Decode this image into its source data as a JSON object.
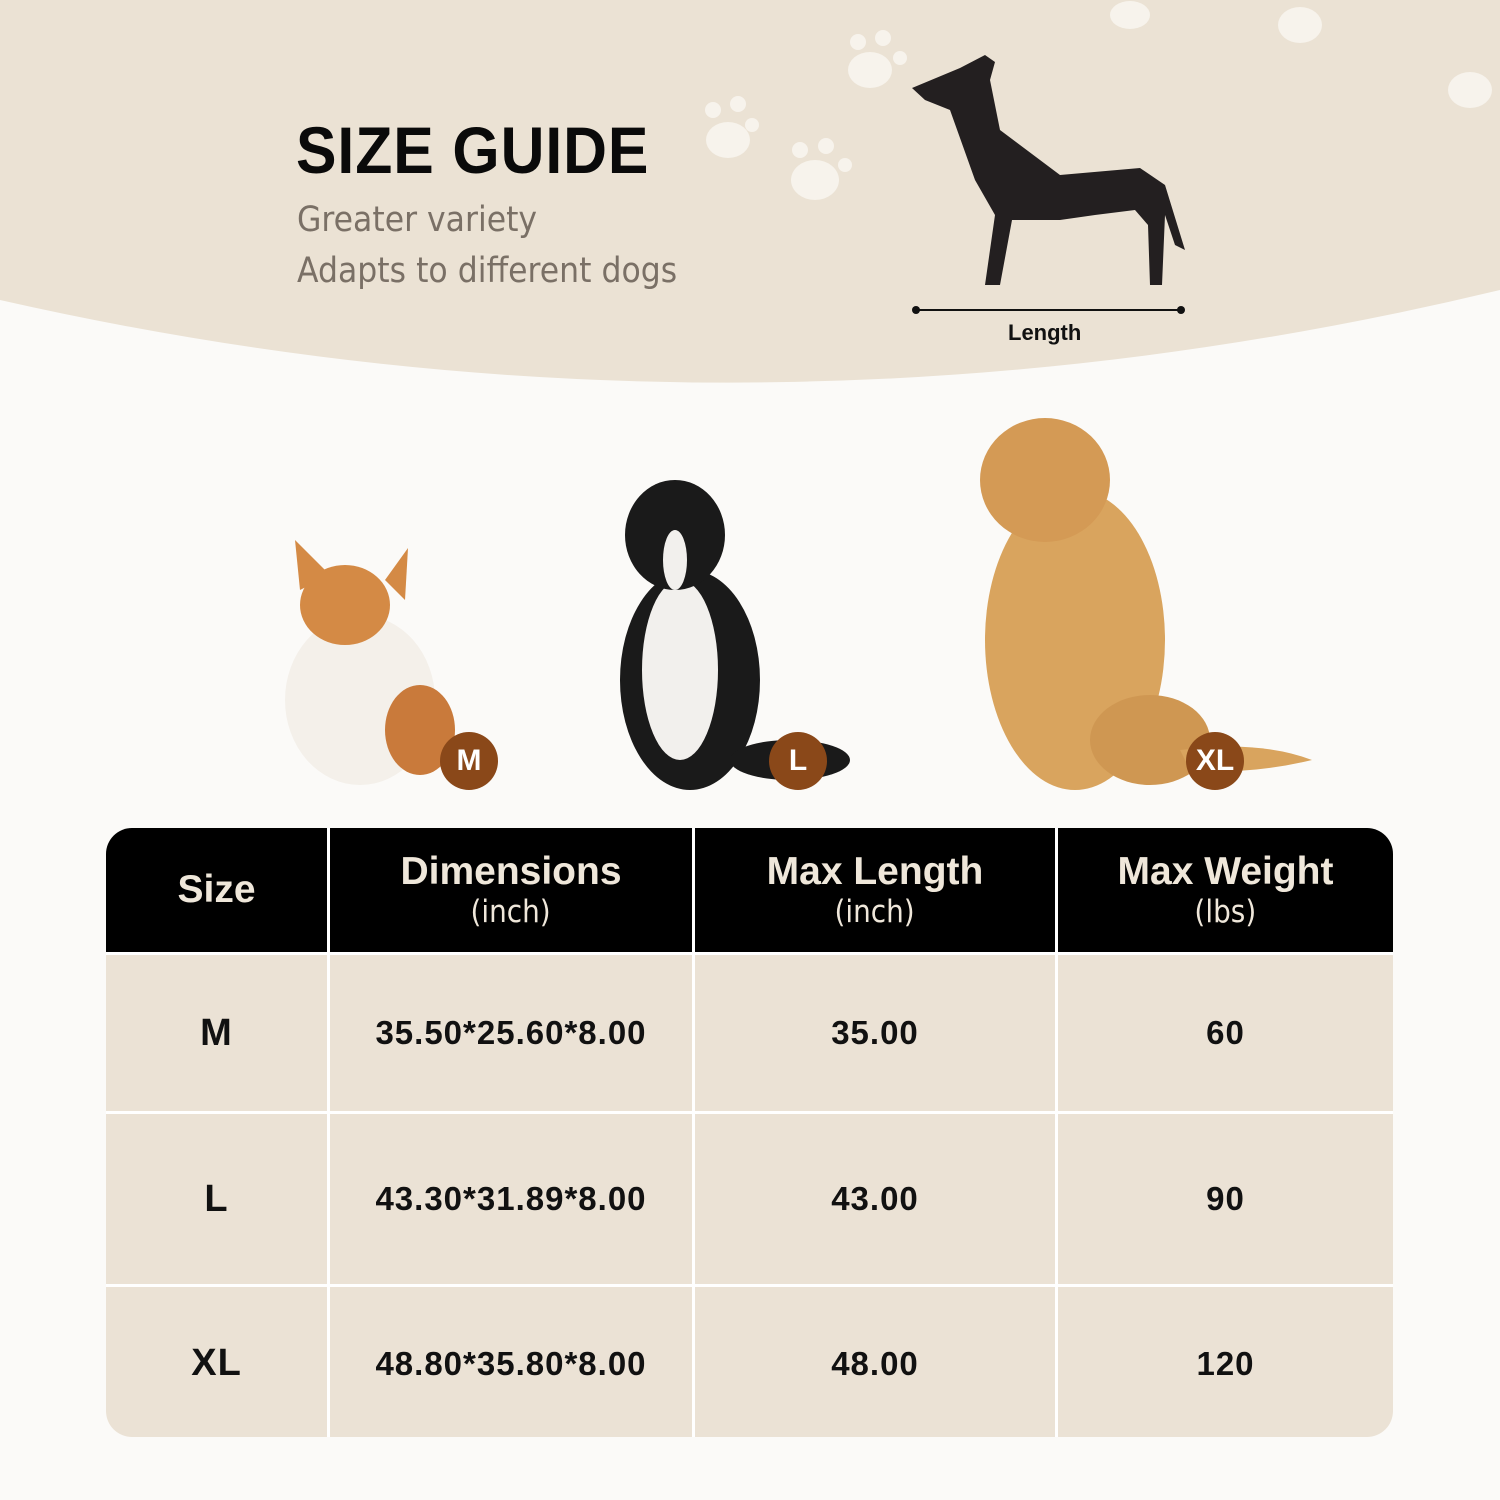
{
  "header": {
    "title": "SIZE GUIDE",
    "subtitle_lines": [
      "Greater variety",
      "Adapts to different dogs"
    ],
    "length_label": "Length"
  },
  "dogs": [
    {
      "breed": "corgi",
      "badge": "M"
    },
    {
      "breed": "border-collie",
      "badge": "L"
    },
    {
      "breed": "golden-retriever",
      "badge": "XL"
    }
  ],
  "table": {
    "headers": [
      {
        "title": "Size",
        "unit": ""
      },
      {
        "title": "Dimensions",
        "unit": "(inch)"
      },
      {
        "title": "Max Length",
        "unit": "(inch)"
      },
      {
        "title": "Max Weight",
        "unit": "(lbs)"
      }
    ],
    "rows": [
      [
        "M",
        "35.50*25.60*8.00",
        "35.00",
        "60"
      ],
      [
        "L",
        "43.30*31.89*8.00",
        "43.00",
        "90"
      ],
      [
        "XL",
        "48.80*35.80*8.00",
        "48.00",
        "120"
      ]
    ]
  },
  "colors": {
    "banner": "#ebe2d4",
    "header_bg": "#000000",
    "row_bg": "#ebe2d5",
    "badge": "#8a4819"
  }
}
